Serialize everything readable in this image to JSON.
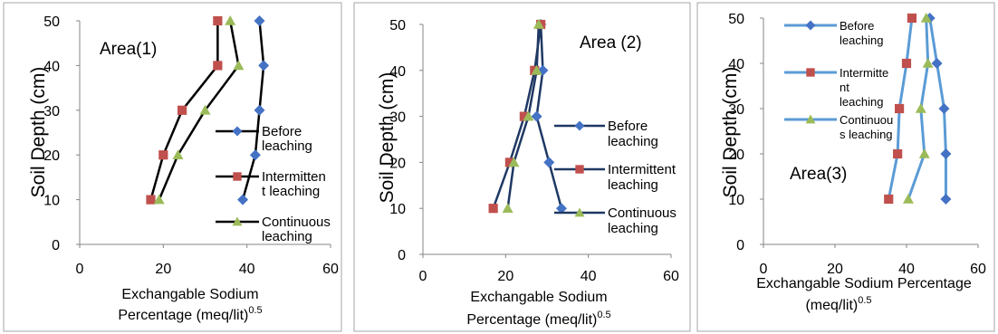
{
  "chart_data": [
    {
      "type": "line",
      "area_label": "Area(1)",
      "xlabel_line1": "Exchangable Sodium",
      "xlabel_line2": "Percentage (meq/lit)",
      "xlabel_sup": "0.5",
      "ylabel": "Soil Depth (cm)",
      "xlim": [
        0,
        60
      ],
      "ylim": [
        0,
        50
      ],
      "xticks": [
        "0",
        "20",
        "40",
        "60"
      ],
      "yticks": [
        "0",
        "10",
        "20",
        "30",
        "40",
        "50"
      ],
      "legend_placement": "right",
      "series": [
        {
          "name_lines": [
            "Before",
            "leaching"
          ],
          "color": "#000000",
          "marker_color": "#4472c4",
          "marker": "diamond",
          "x": [
            39,
            42,
            43,
            44,
            43
          ],
          "y": [
            10,
            20,
            30,
            40,
            50
          ]
        },
        {
          "name_lines": [
            "Intermitten",
            "t leaching"
          ],
          "color": "#000000",
          "marker_color": "#c0504d",
          "marker": "square",
          "x": [
            17,
            20,
            24.5,
            33,
            33
          ],
          "y": [
            10,
            20,
            30,
            40,
            50
          ]
        },
        {
          "name_lines": [
            "Continuous",
            "leaching"
          ],
          "color": "#000000",
          "marker_color": "#9bbb59",
          "marker": "triangle",
          "x": [
            19,
            23.5,
            30,
            38,
            36
          ],
          "y": [
            10,
            20,
            30,
            40,
            50
          ]
        }
      ]
    },
    {
      "type": "line",
      "area_label": "Area (2)",
      "xlabel_line1": "Exchangable Sodium",
      "xlabel_line2": "Percentage (meq/lit)",
      "xlabel_sup": "0.5",
      "ylabel": "Soil Depth (cm)",
      "xlim": [
        0,
        60
      ],
      "ylim": [
        0,
        50
      ],
      "xticks": [
        "0",
        "20",
        "40",
        "60"
      ],
      "yticks": [
        "0",
        "10",
        "20",
        "30",
        "40",
        "50"
      ],
      "legend_placement": "right",
      "series": [
        {
          "name_lines": [
            "Before",
            "leaching"
          ],
          "color": "#1f3864",
          "marker_color": "#4472c4",
          "marker": "diamond",
          "x": [
            33.5,
            30.5,
            27.5,
            29,
            28.5
          ],
          "y": [
            10,
            20,
            30,
            40,
            50
          ]
        },
        {
          "name_lines": [
            "Intermittent",
            "leaching"
          ],
          "color": "#1f3864",
          "marker_color": "#c0504d",
          "marker": "square",
          "x": [
            17,
            21,
            24.5,
            27,
            28.5
          ],
          "y": [
            10,
            20,
            30,
            40,
            50
          ]
        },
        {
          "name_lines": [
            "Continuous",
            "leaching"
          ],
          "color": "#1f3864",
          "marker_color": "#9bbb59",
          "marker": "triangle",
          "x": [
            20.5,
            22,
            25.5,
            27.5,
            28
          ],
          "y": [
            10,
            20,
            30,
            40,
            50
          ]
        }
      ]
    },
    {
      "type": "line",
      "area_label": "Area(3)",
      "xlabel_line1": "Exchangable Sodium Percentage",
      "xlabel_line2": "(meq/lit)",
      "xlabel_sup": "0.5",
      "ylabel": "Soil Depth (cm)",
      "xlim": [
        0,
        60
      ],
      "ylim": [
        0,
        50
      ],
      "xticks": [
        "0",
        "20",
        "40",
        "60"
      ],
      "yticks": [
        "0",
        "10",
        "20",
        "30",
        "40",
        "50"
      ],
      "legend_placement": "top-left",
      "series": [
        {
          "name_lines": [
            "Before",
            "leaching"
          ],
          "color": "#5b9bd5",
          "marker_color": "#4472c4",
          "marker": "diamond",
          "x": [
            51,
            51,
            50.5,
            48.5,
            46.5
          ],
          "y": [
            10,
            20,
            30,
            40,
            50
          ]
        },
        {
          "name_lines": [
            "Intermitte",
            "nt",
            "leaching"
          ],
          "color": "#5b9bd5",
          "marker_color": "#c0504d",
          "marker": "square",
          "x": [
            35,
            37.5,
            38,
            40,
            41.5
          ],
          "y": [
            10,
            20,
            30,
            40,
            50
          ]
        },
        {
          "name_lines": [
            "Continuou",
            "s leaching"
          ],
          "color": "#5b9bd5",
          "marker_color": "#9bbb59",
          "marker": "triangle",
          "x": [
            40.5,
            45,
            44,
            46,
            45.5
          ],
          "y": [
            10,
            20,
            30,
            40,
            50
          ]
        }
      ]
    }
  ]
}
